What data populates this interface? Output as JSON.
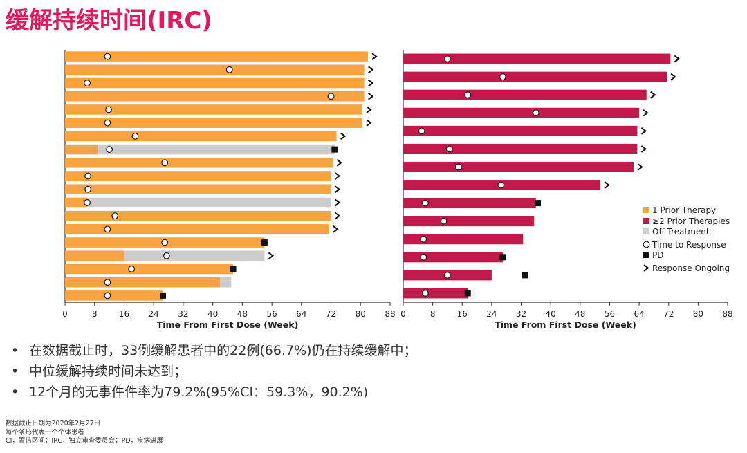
{
  "page": {
    "title": "缓解持续时间(IRC)",
    "bullets": [
      "在数据截止时，33例缓解患者中的22例(66.7%)仍在持续缓解中；",
      "中位缓解持续时间未达到；",
      "12个月的无事件件率为79.2%(95%CI：59.3%，90.2%)"
    ],
    "footnotes": [
      "数据截止日期为2020年2月27日",
      "每个条形代表一个个体患者",
      "CI，置信区间；IRC，独立审查委员会；PD，疾病进展"
    ]
  },
  "colors": {
    "one_prior": "#f7a440",
    "two_plus_prior": "#c2194b",
    "off_treatment": "#cccccc",
    "title": "#e4185a"
  },
  "chart_data": [
    {
      "type": "bar",
      "orientation": "horizontal",
      "panel": "1 Prior Therapy",
      "xlabel": "Time From First Dose (Week)",
      "xlim": [
        0,
        88
      ],
      "xticks": [
        "0",
        "8",
        "16",
        "24",
        "32",
        "40",
        "48",
        "56",
        "64",
        "72",
        "80",
        "88"
      ],
      "patients": [
        {
          "end": 82,
          "off_start": null,
          "response": 11.5,
          "pd": null,
          "ongoing": true
        },
        {
          "end": 81,
          "off_start": null,
          "response": 44.5,
          "pd": null,
          "ongoing": true
        },
        {
          "end": 81,
          "off_start": null,
          "response": 6,
          "pd": null,
          "ongoing": true
        },
        {
          "end": 81,
          "off_start": null,
          "response": 72,
          "pd": null,
          "ongoing": true
        },
        {
          "end": 80.5,
          "off_start": null,
          "response": 11.8,
          "pd": null,
          "ongoing": true
        },
        {
          "end": 80.5,
          "off_start": null,
          "response": 11.5,
          "pd": null,
          "ongoing": true
        },
        {
          "end": 73.5,
          "off_start": null,
          "response": 19,
          "pd": null,
          "ongoing": true
        },
        {
          "end": 73,
          "off_start": 9,
          "response": 12,
          "pd": 73,
          "ongoing": false
        },
        {
          "end": 72.5,
          "off_start": null,
          "response": 27,
          "pd": null,
          "ongoing": true
        },
        {
          "end": 72,
          "off_start": null,
          "response": 6.2,
          "pd": null,
          "ongoing": true
        },
        {
          "end": 72,
          "off_start": null,
          "response": 6.2,
          "pd": null,
          "ongoing": true
        },
        {
          "end": 72,
          "off_start": 6,
          "response": 6,
          "pd": null,
          "ongoing": true
        },
        {
          "end": 72,
          "off_start": null,
          "response": 13.5,
          "pd": null,
          "ongoing": true
        },
        {
          "end": 71.5,
          "off_start": null,
          "response": 11.5,
          "pd": null,
          "ongoing": true
        },
        {
          "end": 54,
          "off_start": null,
          "response": 27,
          "pd": 54,
          "ongoing": false
        },
        {
          "end": 54,
          "off_start": 16,
          "response": 27.5,
          "pd": null,
          "ongoing": true
        },
        {
          "end": 45.5,
          "off_start": null,
          "response": 18,
          "pd": 45.5,
          "ongoing": false
        },
        {
          "end": 45,
          "off_start": 42,
          "response": 11.5,
          "pd": null,
          "ongoing": false
        },
        {
          "end": 26.5,
          "off_start": null,
          "response": 11.5,
          "pd": 26.5,
          "ongoing": false
        }
      ]
    },
    {
      "type": "bar",
      "orientation": "horizontal",
      "panel": "≥2 Prior Therapies",
      "xlabel": "Time From First Dose (Week)",
      "xlim": [
        0,
        88
      ],
      "xticks": [
        "0",
        "8",
        "16",
        "24",
        "32",
        "40",
        "48",
        "56",
        "64",
        "72",
        "80",
        "88"
      ],
      "patients": [
        {
          "end": 72.5,
          "off_start": null,
          "response": 12,
          "pd": null,
          "ongoing": true
        },
        {
          "end": 71.5,
          "off_start": null,
          "response": 27,
          "pd": null,
          "ongoing": true
        },
        {
          "end": 66,
          "off_start": null,
          "response": 17.5,
          "pd": null,
          "ongoing": true
        },
        {
          "end": 64,
          "off_start": null,
          "response": 36,
          "pd": null,
          "ongoing": true
        },
        {
          "end": 63.5,
          "off_start": null,
          "response": 5,
          "pd": null,
          "ongoing": true
        },
        {
          "end": 63.5,
          "off_start": null,
          "response": 12.5,
          "pd": null,
          "ongoing": true
        },
        {
          "end": 62.5,
          "off_start": null,
          "response": 15,
          "pd": null,
          "ongoing": true
        },
        {
          "end": 53.5,
          "off_start": null,
          "response": 26.5,
          "pd": null,
          "ongoing": true
        },
        {
          "end": 36,
          "off_start": null,
          "response": 6,
          "pd": 36.5,
          "ongoing": false
        },
        {
          "end": 35.5,
          "off_start": null,
          "response": 11,
          "pd": null,
          "ongoing": false
        },
        {
          "end": 32.5,
          "off_start": null,
          "response": 5.5,
          "pd": null,
          "ongoing": false
        },
        {
          "end": 27,
          "off_start": null,
          "response": 5.5,
          "pd": 27,
          "ongoing": false
        },
        {
          "end": 24,
          "off_start": null,
          "response": 12,
          "pd": 33,
          "ongoing": false
        },
        {
          "end": 17.5,
          "off_start": null,
          "response": 6,
          "pd": 17.5,
          "ongoing": false
        }
      ]
    }
  ],
  "legend": [
    {
      "label": "1 Prior Therapy",
      "symbol": "square-orange"
    },
    {
      "label": "≥2 Prior Therapies",
      "symbol": "square-crimson"
    },
    {
      "label": "Off Treatment",
      "symbol": "square-gray"
    },
    {
      "label": "Time to Response",
      "symbol": "circle-open"
    },
    {
      "label": "PD",
      "symbol": "square-black"
    },
    {
      "label": "Response Ongoing",
      "symbol": "chevron"
    }
  ]
}
